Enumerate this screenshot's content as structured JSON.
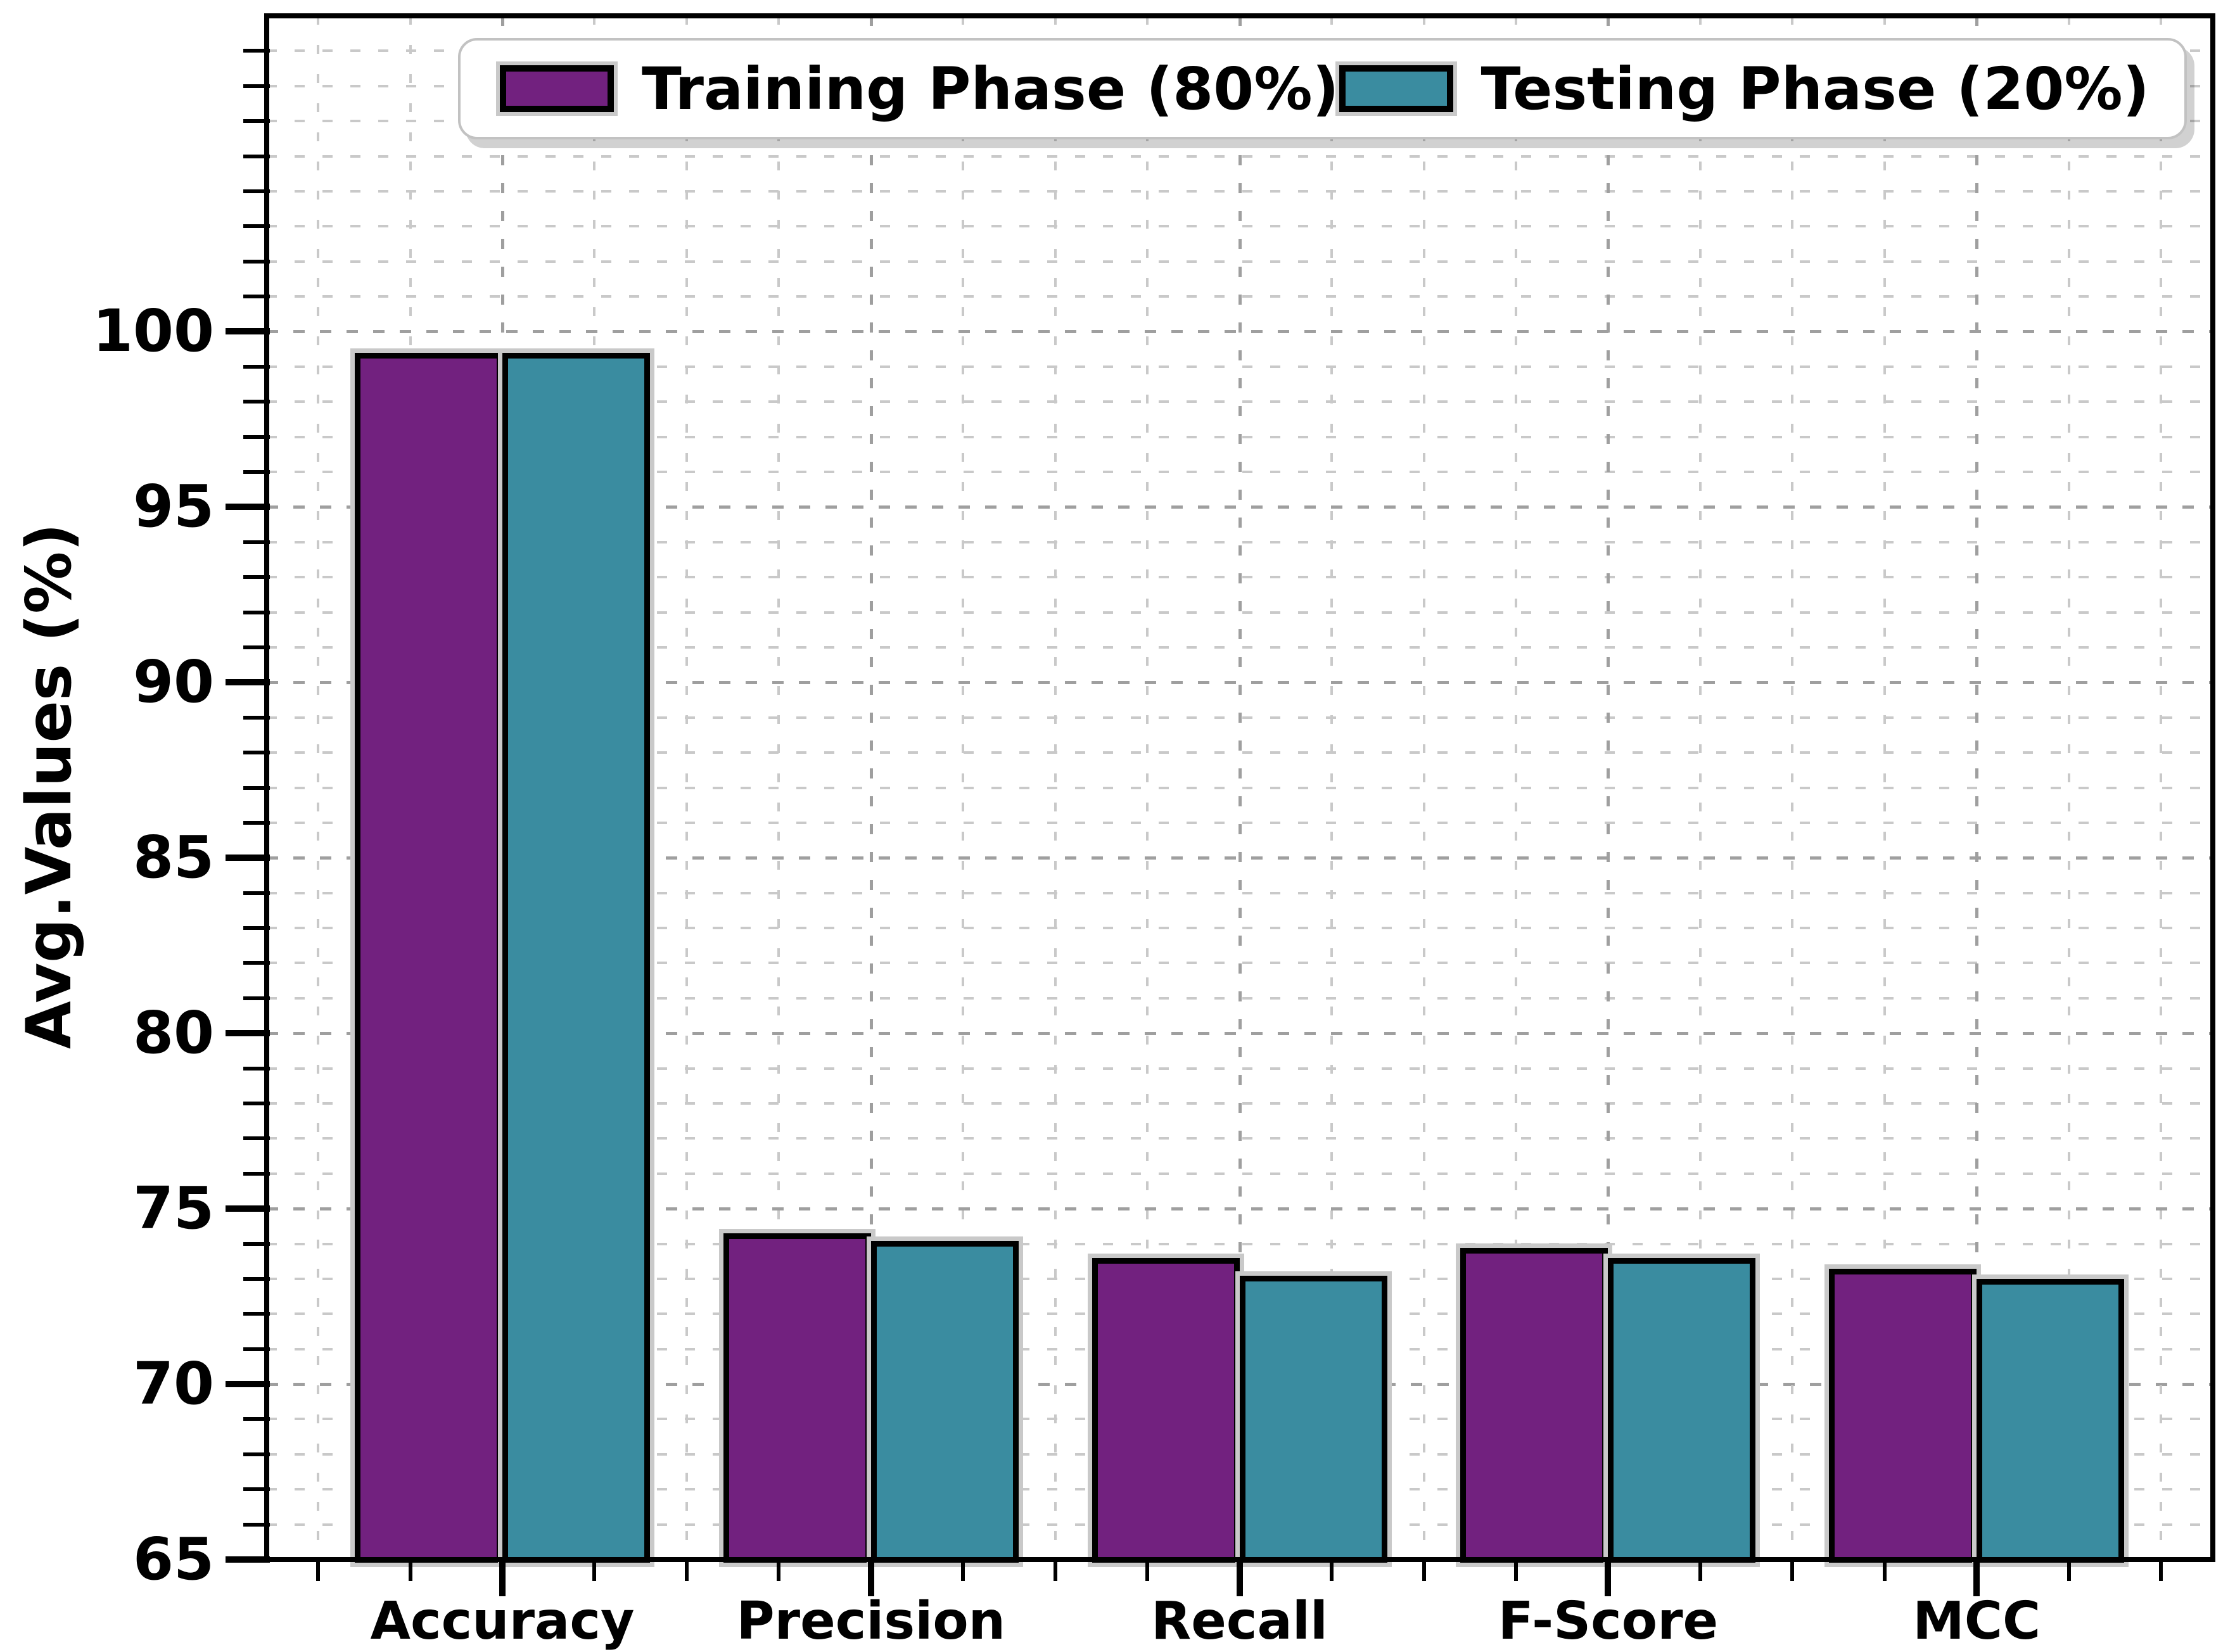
{
  "ylabel": "Avg.Values (%)",
  "legend": {
    "items": [
      {
        "label": "Training Phase (80%)",
        "color": "#72217F"
      },
      {
        "label": "Testing Phase (20%)",
        "color": "#3A8CA0"
      }
    ]
  },
  "colors": {
    "training": "#72217F",
    "testing": "#3A8CA0",
    "bar_edge": "#000000",
    "bar_halo": "#c9c9c9",
    "grid_minor": "#c9c9c9",
    "grid_major": "#9f9f9f",
    "background": "#ffffff",
    "legend_border": "#c2c2c2",
    "text": "#000000"
  },
  "chart_data": {
    "type": "bar",
    "title": "",
    "xlabel": "",
    "ylabel": "Avg.Values (%)",
    "categories": [
      "Accuracy",
      "Precision",
      "Recall",
      "F-Score",
      "MCC"
    ],
    "series": [
      {
        "name": "Training Phase (80%)",
        "color": "#72217F",
        "values": [
          99.3,
          74.2,
          73.5,
          73.8,
          73.2
        ]
      },
      {
        "name": "Testing Phase (20%)",
        "color": "#3A8CA0",
        "values": [
          99.3,
          74.0,
          73.0,
          73.5,
          72.9
        ]
      }
    ],
    "ylim": [
      65,
      109
    ],
    "yticks": [
      65,
      70,
      75,
      80,
      85,
      90,
      95,
      100
    ],
    "grid": "both axes, dashed gray, minor gridlines every 1 unit",
    "legend_position": "top center, horizontal",
    "bar_style": "black edges with light gray halo"
  }
}
